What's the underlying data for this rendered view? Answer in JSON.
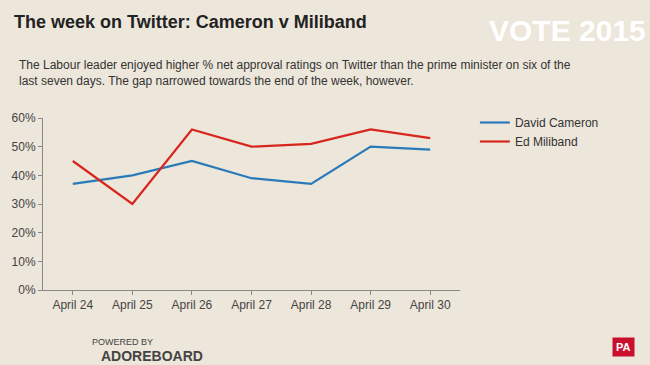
{
  "chart_data": {
    "type": "line",
    "title": "The week on Twitter: Cameron v Miliband",
    "subtitle": "The Labour leader enjoyed higher % net approval ratings on Twitter than the prime minister on six of the last seven days. The gap narrowed towards the end of the week, however.",
    "categories": [
      "April 24",
      "April 25",
      "April 26",
      "April 27",
      "April 28",
      "April 29",
      "April 30"
    ],
    "series": [
      {
        "name": "David Cameron",
        "color": "#2a7ab9",
        "values": [
          37,
          40,
          45,
          39,
          37,
          50,
          49
        ]
      },
      {
        "name": "Ed Miliband",
        "color": "#d7261e",
        "values": [
          45,
          30,
          56,
          50,
          51,
          56,
          53
        ]
      }
    ],
    "ylim": [
      0,
      60
    ],
    "yticks": [
      {
        "value": 0,
        "label": "0%"
      },
      {
        "value": 10,
        "label": "10%"
      },
      {
        "value": 20,
        "label": "20%"
      },
      {
        "value": 30,
        "label": "30%"
      },
      {
        "value": 40,
        "label": "40%"
      },
      {
        "value": 50,
        "label": "50%"
      },
      {
        "value": 60,
        "label": "60%"
      }
    ],
    "grid": false,
    "legend": "upper right",
    "annotations": [
      "VOTE 2015",
      "POWERED BY",
      "ADOREBOARD",
      "PA"
    ]
  }
}
